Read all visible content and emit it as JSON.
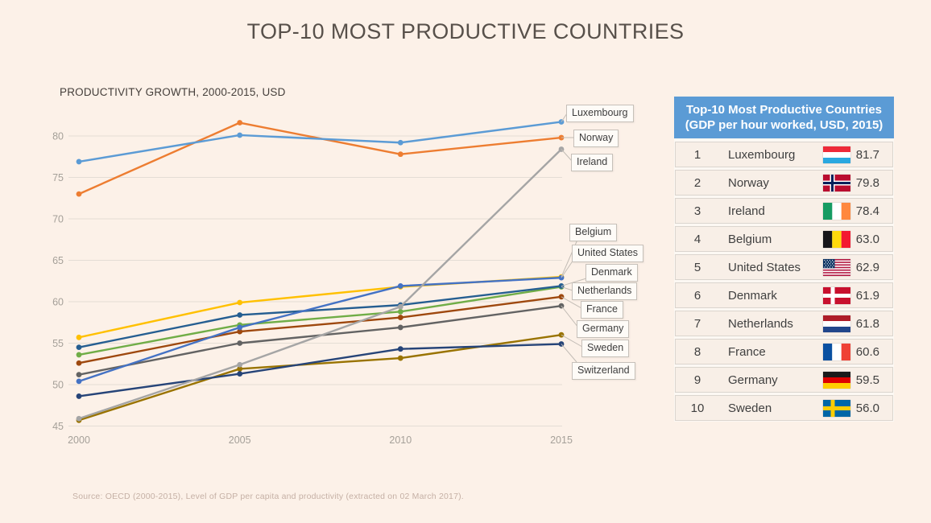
{
  "page": {
    "title": "TOP-10 MOST PRODUCTIVE COUNTRIES",
    "background_color": "#FCF1E8",
    "source_note": "Source: OECD (2000-2015), Level of GDP per capita and productivity (extracted on 02 March 2017)."
  },
  "chart": {
    "subtitle": "PRODUCTIVITY GROWTH, 2000-2015, USD"
  },
  "chart_data": {
    "type": "line",
    "title": "PRODUCTIVITY GROWTH, 2000-2015, USD",
    "x": [
      2000,
      2005,
      2010,
      2015
    ],
    "xticks": [
      "2000",
      "2005",
      "2010",
      "2015"
    ],
    "yticks": [
      45,
      50,
      55,
      60,
      65,
      70,
      75,
      80
    ],
    "ylim": [
      45,
      82
    ],
    "grid": "horizontal",
    "legend_position": "right-callouts",
    "series": [
      {
        "name": "Luxembourg",
        "color": "#5B9BD5",
        "values": [
          76.9,
          80.1,
          79.2,
          81.7
        ]
      },
      {
        "name": "Norway",
        "color": "#ED7D31",
        "values": [
          73.0,
          81.6,
          77.8,
          79.8
        ]
      },
      {
        "name": "Ireland",
        "color": "#A5A5A5",
        "values": [
          45.9,
          52.4,
          59.4,
          78.4
        ]
      },
      {
        "name": "Belgium",
        "color": "#FFC000",
        "values": [
          55.7,
          59.9,
          61.8,
          63.0
        ]
      },
      {
        "name": "United States",
        "color": "#4472C4",
        "values": [
          50.4,
          56.9,
          61.9,
          62.9
        ]
      },
      {
        "name": "Denmark",
        "color": "#255E91",
        "values": [
          54.5,
          58.4,
          59.6,
          61.9
        ]
      },
      {
        "name": "Netherlands",
        "color": "#70AD47",
        "values": [
          53.6,
          57.2,
          58.8,
          61.8
        ]
      },
      {
        "name": "France",
        "color": "#9E480E",
        "values": [
          52.6,
          56.4,
          58.1,
          60.6
        ]
      },
      {
        "name": "Germany",
        "color": "#636363",
        "values": [
          51.2,
          55.0,
          56.9,
          59.5
        ]
      },
      {
        "name": "Sweden",
        "color": "#997300",
        "values": [
          45.7,
          51.9,
          53.2,
          56.0
        ]
      },
      {
        "name": "Switzerland",
        "color": "#264478",
        "values": [
          48.6,
          51.3,
          54.3,
          54.9
        ]
      }
    ]
  },
  "table": {
    "header_line1": "Top-10 Most Productive Countries",
    "header_line2": "(GDP per hour worked, USD, 2015)",
    "header_bg": "#5B9BD5",
    "rows": [
      {
        "rank": "1",
        "country": "Luxembourg",
        "flag": "luxembourg",
        "value": "81.7"
      },
      {
        "rank": "2",
        "country": "Norway",
        "flag": "norway",
        "value": "79.8"
      },
      {
        "rank": "3",
        "country": "Ireland",
        "flag": "ireland",
        "value": "78.4"
      },
      {
        "rank": "4",
        "country": "Belgium",
        "flag": "belgium",
        "value": "63.0"
      },
      {
        "rank": "5",
        "country": "United States",
        "flag": "united-states",
        "value": "62.9"
      },
      {
        "rank": "6",
        "country": "Denmark",
        "flag": "denmark",
        "value": "61.9"
      },
      {
        "rank": "7",
        "country": "Netherlands",
        "flag": "netherlands",
        "value": "61.8"
      },
      {
        "rank": "8",
        "country": "France",
        "flag": "france",
        "value": "60.6"
      },
      {
        "rank": "9",
        "country": "Germany",
        "flag": "germany",
        "value": "59.5"
      },
      {
        "rank": "10",
        "country": "Sweden",
        "flag": "sweden",
        "value": "56.0"
      }
    ]
  }
}
